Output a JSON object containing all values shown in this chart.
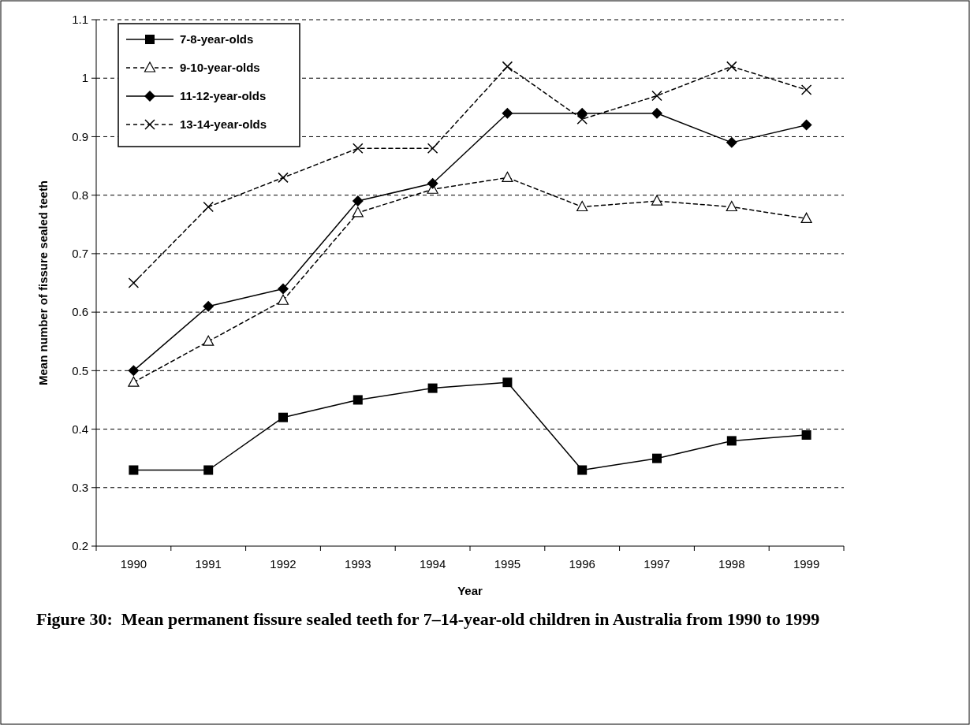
{
  "chart_data": {
    "type": "line",
    "xlabel": "Year",
    "ylabel": "Mean number of fissure sealed teeth",
    "categories": [
      "1990",
      "1991",
      "1992",
      "1993",
      "1994",
      "1995",
      "1996",
      "1997",
      "1998",
      "1999"
    ],
    "series": [
      {
        "name": "7-8-year-olds",
        "color": "#000000",
        "marker": "square",
        "line_style": "solid",
        "values": [
          0.33,
          0.33,
          0.42,
          0.45,
          0.47,
          0.48,
          0.33,
          0.35,
          0.38,
          0.39
        ]
      },
      {
        "name": "9-10-year-olds",
        "color": "#000000",
        "marker": "triangle",
        "line_style": "dashed",
        "values": [
          0.48,
          0.55,
          0.62,
          0.77,
          0.81,
          0.83,
          0.78,
          0.79,
          0.78,
          0.76
        ]
      },
      {
        "name": "11-12-year-olds",
        "color": "#000000",
        "marker": "diamond",
        "line_style": "solid",
        "values": [
          0.5,
          0.61,
          0.64,
          0.79,
          0.82,
          0.94,
          0.94,
          0.94,
          0.89,
          0.92
        ]
      },
      {
        "name": "13-14-year-olds",
        "color": "#000000",
        "marker": "cross",
        "line_style": "dashed",
        "values": [
          0.65,
          0.78,
          0.83,
          0.88,
          0.88,
          1.02,
          0.93,
          0.97,
          1.02,
          0.98
        ]
      }
    ],
    "ylim": [
      0.2,
      1.1
    ],
    "yticks": [
      0.2,
      0.3,
      0.4,
      0.5,
      0.6,
      0.7,
      0.8,
      0.9,
      1,
      1.1
    ],
    "grid": "y",
    "legend": "top left",
    "annotations": [
      "Figure 30:  Mean permanent fissure sealed teeth for 7–14-year-old children in Australia from 1990 to 1999"
    ]
  }
}
